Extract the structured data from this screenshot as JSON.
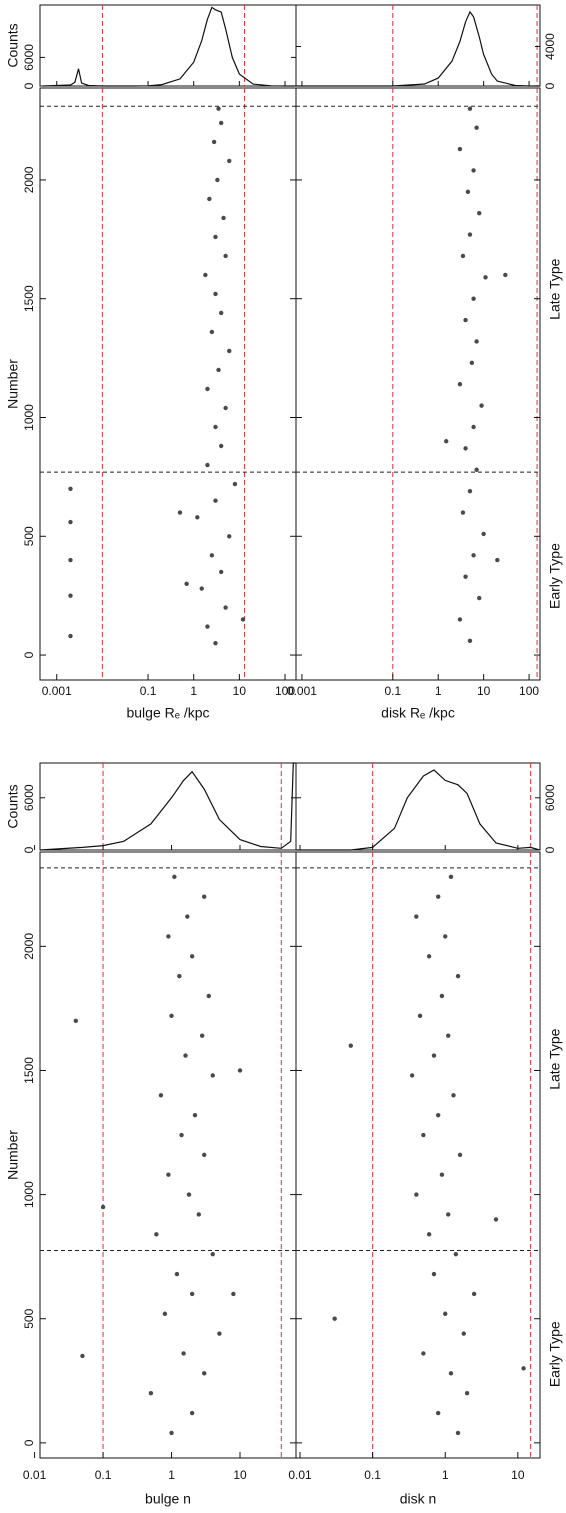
{
  "chart_data": [
    {
      "type": "scatter",
      "xlabel": "bulge Rₑ /kpc",
      "log_x": true,
      "xlim": [
        0.00043,
        174
      ],
      "xticks": [
        0.001,
        0.1,
        1,
        10,
        100
      ],
      "ylabel": "Number",
      "ylim": [
        -105,
        2387
      ],
      "yticks": [
        0,
        500,
        1000,
        1500,
        2000
      ],
      "hlines": [
        770,
        2310
      ],
      "vlines": [
        0.01,
        13
      ],
      "color": "#4a4a4a",
      "vline_color": "#e0303a",
      "hline_color": "#222222",
      "x": [
        3,
        2,
        5,
        1.5,
        4,
        2.5,
        6,
        1.2,
        3,
        8,
        2,
        4,
        3,
        5,
        2,
        3.5,
        6,
        2.5,
        4,
        3,
        1.8,
        5,
        3,
        4.5,
        2.2,
        3.3,
        6,
        2.8,
        4,
        3.5,
        0.002,
        0.002,
        0.002,
        0.002,
        0.002,
        0.7,
        12,
        0.5
      ],
      "values": [
        50,
        120,
        200,
        280,
        350,
        420,
        500,
        580,
        650,
        720,
        800,
        880,
        960,
        1040,
        1120,
        1200,
        1280,
        1360,
        1440,
        1520,
        1600,
        1680,
        1760,
        1840,
        1920,
        2000,
        2080,
        2160,
        2240,
        2300,
        80,
        250,
        400,
        560,
        700,
        300,
        150,
        600
      ],
      "hist": {
        "ylabel": "Counts",
        "ylim": [
          0,
          17000
        ],
        "yticks": [
          0,
          6000
        ],
        "x": [
          0.0005,
          0.001,
          0.002,
          0.0025,
          0.003,
          0.0035,
          0.005,
          0.01,
          0.05,
          0.1,
          0.2,
          0.5,
          1,
          1.5,
          2,
          2.5,
          3,
          4,
          5,
          7,
          10,
          20,
          50,
          100,
          170
        ],
        "values": [
          0,
          100,
          200,
          800,
          3600,
          600,
          100,
          0,
          0,
          50,
          300,
          1500,
          5000,
          9500,
          14000,
          16500,
          16000,
          15500,
          12000,
          6000,
          2500,
          400,
          50,
          0,
          0
        ]
      }
    },
    {
      "type": "scatter",
      "xlabel": "disk Rₑ /kpc",
      "log_x": true,
      "xlim": [
        0.00074,
        174
      ],
      "xticks": [
        0.001,
        0.1,
        1,
        10,
        100
      ],
      "ylim": [
        -105,
        2387
      ],
      "yticks": [
        0,
        500,
        1000,
        1500,
        2000
      ],
      "side_labels": [
        "Late Type",
        "Early Type"
      ],
      "hlines": [
        770,
        2310
      ],
      "vlines": [
        0.1,
        150
      ],
      "color": "#4a4a4a",
      "vline_color": "#e0303a",
      "hline_color": "#222222",
      "x": [
        5,
        3,
        8,
        4,
        6,
        10,
        3.5,
        5,
        7,
        4,
        6,
        9,
        3,
        5.5,
        7,
        4,
        6,
        11,
        3.5,
        5,
        8,
        4.5,
        6,
        3,
        7,
        5,
        20,
        1.5,
        30
      ],
      "values": [
        60,
        150,
        240,
        330,
        420,
        510,
        600,
        690,
        780,
        870,
        960,
        1050,
        1140,
        1230,
        1320,
        1410,
        1500,
        1590,
        1680,
        1770,
        1860,
        1950,
        2040,
        2130,
        2220,
        2300,
        400,
        900,
        1600
      ],
      "hist": {
        "ylim": [
          0,
          8200
        ],
        "yticks": [
          0,
          4000
        ],
        "x": [
          0.00075,
          0.1,
          0.5,
          1,
          2,
          3,
          4,
          5,
          6,
          8,
          10,
          15,
          20,
          50,
          100,
          170
        ],
        "values": [
          0,
          0,
          200,
          800,
          2500,
          4500,
          6500,
          7500,
          7000,
          5000,
          3200,
          1200,
          500,
          50,
          0,
          0
        ]
      }
    },
    {
      "type": "scatter",
      "xlabel": "bulge n",
      "log_x": true,
      "xlim": [
        0.012,
        65.7
      ],
      "xticks": [
        0.01,
        0.1,
        1,
        10
      ],
      "ylabel": "Number",
      "ylim": [
        -61,
        2380
      ],
      "yticks": [
        0,
        500,
        1000,
        1500,
        2000
      ],
      "hlines": [
        775,
        2316
      ],
      "vlines": [
        0.1,
        40
      ],
      "color": "#4a4a4a",
      "vline_color": "#e0303a",
      "hline_color": "#222222",
      "x": [
        1,
        2,
        0.5,
        3,
        1.5,
        5,
        0.8,
        2,
        1.2,
        4,
        0.6,
        2.5,
        1.8,
        0.9,
        3,
        1.4,
        2.2,
        0.7,
        4,
        1.6,
        2.8,
        1,
        3.5,
        1.3,
        2,
        0.9,
        1.7,
        3,
        1.1,
        0.05,
        0.04,
        0.1,
        8,
        10
      ],
      "values": [
        40,
        120,
        200,
        280,
        360,
        440,
        520,
        600,
        680,
        760,
        840,
        920,
        1000,
        1080,
        1160,
        1240,
        1320,
        1400,
        1480,
        1560,
        1640,
        1720,
        1800,
        1880,
        1960,
        2040,
        2120,
        2200,
        2280,
        350,
        1700,
        950,
        600,
        1500
      ],
      "hist": {
        "ylabel": "Counts",
        "ylim": [
          0,
          10000
        ],
        "yticks": [
          0,
          6000
        ],
        "x": [
          0.012,
          0.05,
          0.1,
          0.2,
          0.5,
          1,
          1.5,
          2,
          3,
          5,
          10,
          20,
          40,
          55,
          60,
          65
        ],
        "values": [
          0,
          300,
          500,
          1000,
          3000,
          6000,
          8000,
          9000,
          7000,
          3500,
          1200,
          400,
          200,
          1000,
          10000,
          10000
        ]
      }
    },
    {
      "type": "scatter",
      "xlabel": "disk n",
      "log_x": true,
      "xlim": [
        0.0088,
        20.2
      ],
      "xticks": [
        0.01,
        0.1,
        1,
        10
      ],
      "ylim": [
        -61,
        2380
      ],
      "yticks": [
        0,
        500,
        1000,
        1500,
        2000
      ],
      "side_labels": [
        "Late Type",
        "Early Type"
      ],
      "hlines": [
        775,
        2316
      ],
      "vlines": [
        0.1,
        15
      ],
      "color": "#4a4a4a",
      "vline_color": "#e0303a",
      "hline_color": "#222222",
      "x": [
        1.5,
        0.8,
        2,
        1.2,
        0.5,
        1.8,
        1,
        2.5,
        0.7,
        1.4,
        0.6,
        1.1,
        0.4,
        0.9,
        1.6,
        0.5,
        0.8,
        1.3,
        0.35,
        0.7,
        1.1,
        0.45,
        0.9,
        1.5,
        0.6,
        1,
        0.4,
        0.8,
        1.2,
        0.03,
        0.05,
        5,
        12
      ],
      "values": [
        40,
        120,
        200,
        280,
        360,
        440,
        520,
        600,
        680,
        760,
        840,
        920,
        1000,
        1080,
        1160,
        1240,
        1320,
        1400,
        1480,
        1560,
        1640,
        1720,
        1800,
        1880,
        1960,
        2040,
        2120,
        2200,
        2280,
        500,
        1600,
        900,
        300
      ],
      "hist": {
        "ylim": [
          0,
          10000
        ],
        "yticks": [
          0,
          6000
        ],
        "x": [
          0.009,
          0.05,
          0.1,
          0.2,
          0.3,
          0.5,
          0.7,
          1,
          1.5,
          2,
          3,
          5,
          10,
          15,
          20
        ],
        "values": [
          0,
          0,
          300,
          2500,
          6000,
          8500,
          9200,
          8000,
          7500,
          6500,
          3000,
          800,
          200,
          300,
          0
        ]
      }
    }
  ]
}
